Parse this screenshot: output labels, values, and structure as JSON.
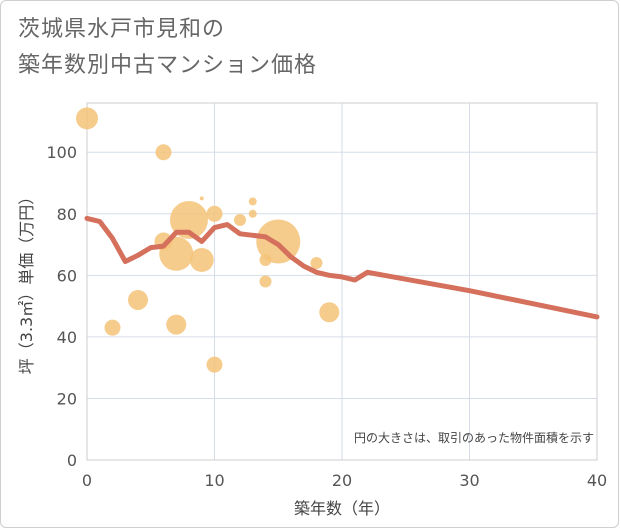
{
  "title_lines": [
    "茨城県水戸市見和の",
    "築年数別中古マンション価格"
  ],
  "colors": {
    "bubble": "#f5c378",
    "line": "#d4705c",
    "grid": "#d6dde8",
    "plot_border": "#cccccc"
  },
  "chart_data": {
    "type": "scatter",
    "xlabel": "築年数（年）",
    "ylabel": "坪（3.3㎡）単価（万円）",
    "xlim": [
      0,
      40
    ],
    "ylim": [
      0,
      116
    ],
    "xticks": [
      0,
      10,
      20,
      30,
      40
    ],
    "yticks": [
      0,
      20,
      40,
      60,
      80,
      100
    ],
    "grid": true,
    "annotation": "円の大きさは、取引のあった物件面積を示す",
    "bubbles": [
      {
        "x": 0,
        "y": 111,
        "size": 11
      },
      {
        "x": 2,
        "y": 43,
        "size": 8
      },
      {
        "x": 4,
        "y": 52,
        "size": 10
      },
      {
        "x": 6,
        "y": 100,
        "size": 8
      },
      {
        "x": 6,
        "y": 71,
        "size": 9
      },
      {
        "x": 7,
        "y": 67,
        "size": 17
      },
      {
        "x": 7,
        "y": 44,
        "size": 10
      },
      {
        "x": 8,
        "y": 78,
        "size": 19
      },
      {
        "x": 9,
        "y": 85,
        "size": 2
      },
      {
        "x": 9,
        "y": 65,
        "size": 12
      },
      {
        "x": 10,
        "y": 80,
        "size": 8
      },
      {
        "x": 10,
        "y": 31,
        "size": 8
      },
      {
        "x": 12,
        "y": 78,
        "size": 6
      },
      {
        "x": 13,
        "y": 84,
        "size": 4
      },
      {
        "x": 13,
        "y": 80,
        "size": 4
      },
      {
        "x": 14,
        "y": 65,
        "size": 6
      },
      {
        "x": 14,
        "y": 58,
        "size": 6
      },
      {
        "x": 15,
        "y": 71,
        "size": 22
      },
      {
        "x": 18,
        "y": 64,
        "size": 6
      },
      {
        "x": 19,
        "y": 48,
        "size": 10
      }
    ],
    "series": [
      {
        "x": [
          0,
          1,
          2,
          3,
          4,
          5,
          6,
          7,
          8,
          9,
          10,
          11,
          12,
          13,
          14,
          15,
          16,
          17,
          18,
          19,
          20,
          21,
          22,
          30,
          40
        ],
        "y": [
          78.5,
          77.5,
          72,
          64.5,
          66.5,
          69,
          69.5,
          74,
          74,
          71,
          75.5,
          76.5,
          73.5,
          73,
          72.5,
          70,
          66,
          63,
          61,
          60,
          59.5,
          58.5,
          61,
          55,
          46.5
        ]
      }
    ]
  }
}
